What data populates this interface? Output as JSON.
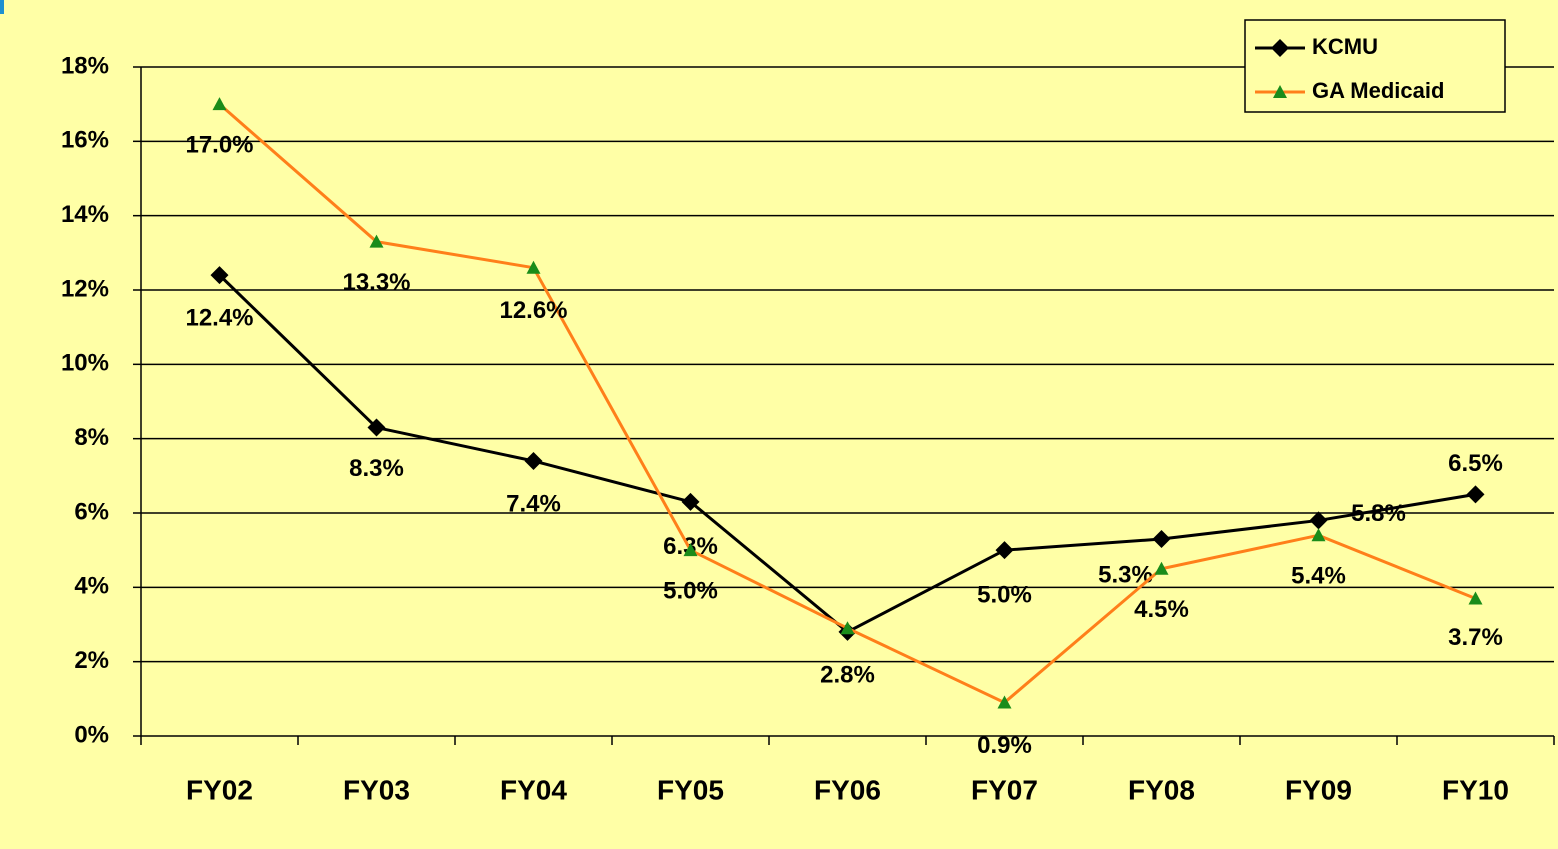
{
  "chart_data": {
    "type": "line",
    "categories": [
      "FY02",
      "FY03",
      "FY04",
      "FY05",
      "FY06",
      "FY07",
      "FY08",
      "FY09",
      "FY10"
    ],
    "series": [
      {
        "name": "KCMU",
        "color": "#000000",
        "marker": "diamond",
        "values": [
          12.4,
          8.3,
          7.4,
          6.3,
          2.8,
          5.0,
          5.3,
          5.8,
          6.5
        ],
        "value_labels": [
          "12.4%",
          "8.3%",
          "7.4%",
          "6.3%",
          "2.8%",
          "5.0%",
          "5.3%",
          "5.8%",
          "6.5%"
        ]
      },
      {
        "name": "GA Medicaid",
        "color": "#ff7f1a",
        "marker": "triangle",
        "marker_color": "#1a8c1a",
        "values": [
          17.0,
          13.3,
          12.6,
          5.0,
          2.9,
          0.9,
          4.5,
          5.4,
          3.7
        ],
        "value_labels": [
          "17.0%",
          "13.3%",
          "12.6%",
          "5.0%",
          null,
          "0.9%",
          "4.5%",
          "5.4%",
          "3.7%"
        ]
      }
    ],
    "ylim": [
      0,
      18
    ],
    "yticks": [
      {
        "value": 0,
        "label": "0%"
      },
      {
        "value": 2,
        "label": "2%"
      },
      {
        "value": 4,
        "label": "4%"
      },
      {
        "value": 6,
        "label": "6%"
      },
      {
        "value": 8,
        "label": "8%"
      },
      {
        "value": 10,
        "label": "10%"
      },
      {
        "value": 12,
        "label": "12%"
      },
      {
        "value": 14,
        "label": "14%"
      },
      {
        "value": 16,
        "label": "16%"
      },
      {
        "value": 18,
        "label": "18%"
      }
    ],
    "grid": true,
    "legend": "top-right",
    "background": "#ffffa6"
  }
}
